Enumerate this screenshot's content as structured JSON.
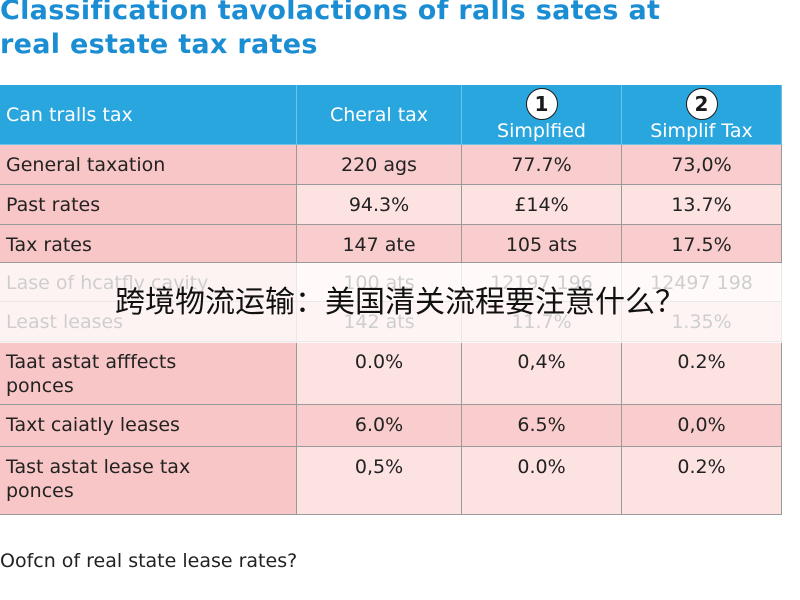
{
  "title": "Classification tavolactions of ralls sates at\nreal estate tax rates",
  "table": {
    "header": [
      {
        "label": "Can tralls tax"
      },
      {
        "label": "Cheral tax"
      },
      {
        "badge": "1",
        "label": "Simplfied"
      },
      {
        "badge": "2",
        "label": "Simplif Tax"
      }
    ],
    "rows": [
      [
        "General taxation",
        "220 ags",
        "77.7%",
        "73,0%"
      ],
      [
        "Past rates",
        "94.3%",
        "£14%",
        "13.7%"
      ],
      [
        "Tax rates",
        "147 ate",
        "105 ats",
        "17.5%"
      ],
      [
        "Lase of hcatfly cavity",
        "100 ats",
        "12197 196",
        "12497 198"
      ],
      [
        "Least leases",
        "142 ats",
        "11.7%",
        "1.35%"
      ],
      [
        "Taat astat afffects\nponces",
        "0.0%",
        "0,4%",
        "0.2%"
      ],
      [
        "Taxt caiatly leases",
        "6.0%",
        "6.5%",
        "0,0%"
      ],
      [
        "Tast astat lease tax\nponces",
        "0,5%",
        "0.0%",
        "0.2%"
      ]
    ]
  },
  "footer": "Oofcn of real state lease rates?",
  "overlay": "跨境物流运输：美国清关流程要注意什么？"
}
